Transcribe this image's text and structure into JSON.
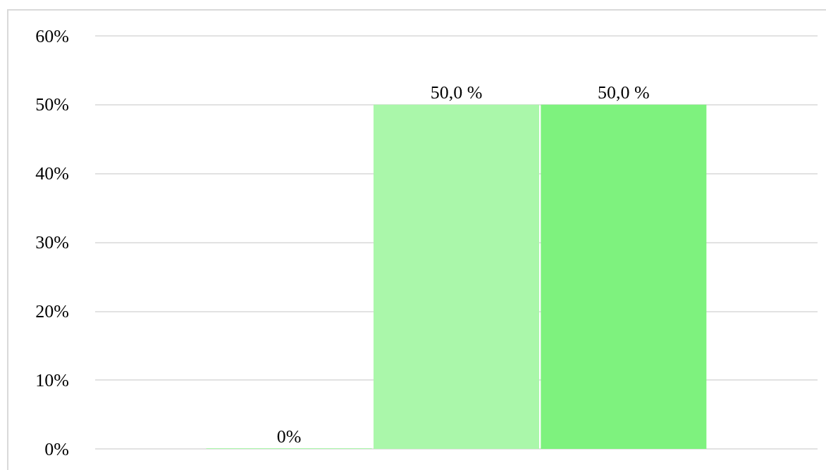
{
  "chart_data": {
    "type": "bar",
    "categories": [
      null
    ],
    "series": [
      {
        "color": "#aaf7aa",
        "values": [
          0
        ],
        "value_labels": [
          "0%"
        ]
      },
      {
        "color": "#aaf7aa",
        "values": [
          50
        ],
        "value_labels": [
          "50,0 %"
        ]
      },
      {
        "color": "#7ef27e",
        "values": [
          50
        ],
        "value_labels": [
          "50,0 %"
        ]
      }
    ],
    "ylim": [
      0,
      60
    ],
    "yticks": [
      {
        "value": 0,
        "label": "0%"
      },
      {
        "value": 10,
        "label": "10%"
      },
      {
        "value": 20,
        "label": "20%"
      },
      {
        "value": 30,
        "label": "30%"
      },
      {
        "value": 40,
        "label": "40%"
      },
      {
        "value": 50,
        "label": "50%"
      },
      {
        "value": 60,
        "label": "60%"
      }
    ],
    "grid": "y"
  }
}
